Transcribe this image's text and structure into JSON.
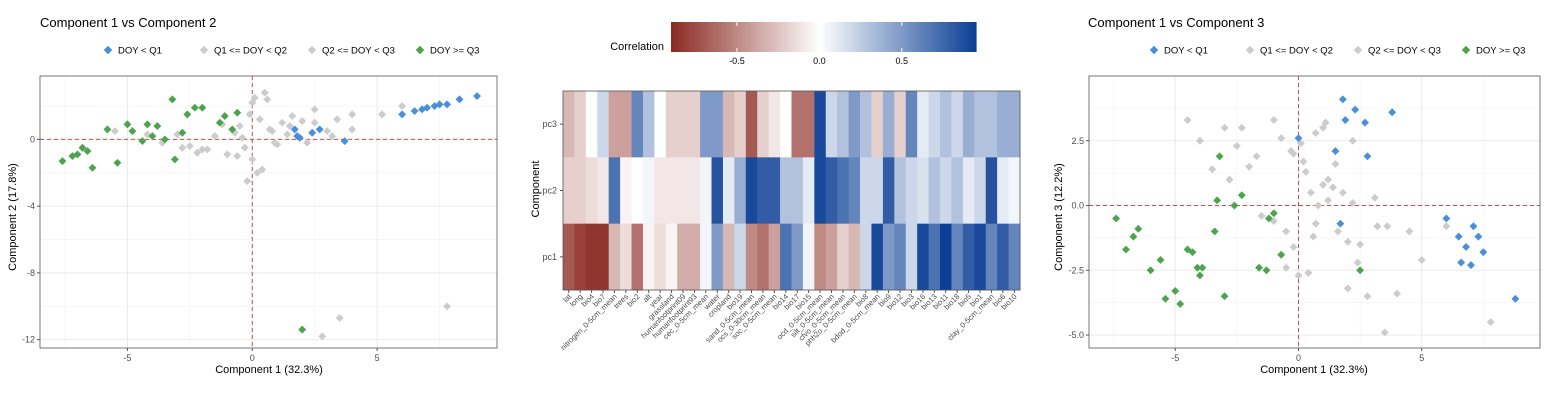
{
  "colors": {
    "q1": "#4a90d9",
    "q2": "#cccccc",
    "q3": "#cccccc",
    "q4": "#4ea44e",
    "refline": "#c0504d",
    "grid": "#ebebeb",
    "heat_neg": "#8b2a22",
    "heat_mid": "#ffffff",
    "heat_pos": "#0b3f95"
  },
  "chart_data": [
    {
      "type": "scatter",
      "title": "Component 1 vs Component 2",
      "xlabel": "Component 1 (32.3%)",
      "ylabel": "Component 2 (17.8%)",
      "xlim": [
        -8.5,
        9.8
      ],
      "ylim": [
        -12.5,
        3.8
      ],
      "xticks": [
        -5,
        0,
        5
      ],
      "yticks": [
        0,
        -4,
        -8,
        -12
      ],
      "legend": [
        "DOY < Q1",
        "Q1 <= DOY < Q2",
        "Q2 <= DOY < Q3",
        "DOY >= Q3"
      ],
      "series": [
        {
          "name": "DOY < Q1",
          "x": [
            1.7,
            1.8,
            1.9,
            2.4,
            2.7,
            3.7,
            6.0,
            6.5,
            6.8,
            7.0,
            7.3,
            7.5,
            7.8,
            8.3,
            9.0
          ],
          "y": [
            0.6,
            0.2,
            0.1,
            0.4,
            0.6,
            -0.1,
            1.5,
            1.7,
            1.8,
            1.9,
            2.0,
            2.1,
            2.1,
            2.4,
            2.6
          ]
        },
        {
          "name": "Q1 <= DOY < Q2",
          "x": [
            -3.0,
            -2.5,
            -2.2,
            -1.8,
            -1.5,
            -1.0,
            -0.7,
            -0.5,
            -0.3,
            -0.1,
            0.1,
            0.3,
            0.5,
            0.7,
            0.9,
            1.2,
            1.4,
            1.6,
            2.0,
            2.2,
            2.5,
            3.0,
            3.2,
            4.0,
            5.2,
            0.2,
            0.4,
            -0.2,
            0.0,
            2.8,
            3.5
          ],
          "y": [
            0.3,
            -0.4,
            -0.8,
            -0.6,
            0.2,
            -0.9,
            0.4,
            0.8,
            -0.5,
            1.5,
            2.5,
            1.2,
            2.8,
            0.6,
            -0.2,
            1.0,
            0.3,
            1.4,
            1.1,
            -0.2,
            1.8,
            0.5,
            0.2,
            1.5,
            1.5,
            -2.0,
            -1.8,
            -2.5,
            -1.2,
            -11.8,
            -10.7
          ]
        },
        {
          "name": "Q2 <= DOY < Q3",
          "x": [
            -5.5,
            -4.2,
            -3.6,
            -2.8,
            -2.0,
            -1.2,
            -0.6,
            -0.4,
            0.0,
            0.6,
            0.8,
            1.0,
            1.5,
            2.5,
            3.4,
            4.0,
            6.0,
            7.8
          ],
          "y": [
            0.5,
            0.3,
            -0.2,
            -0.5,
            -0.6,
            0.9,
            -1.0,
            0.1,
            2.2,
            2.4,
            0.5,
            -0.3,
            0.8,
            1.0,
            1.2,
            0.6,
            2.0,
            -10.0
          ]
        },
        {
          "name": "DOY >= Q3",
          "x": [
            -7.6,
            -7.2,
            -7.0,
            -6.8,
            -6.6,
            -6.4,
            -5.8,
            -5.4,
            -5.0,
            -4.8,
            -4.4,
            -4.2,
            -4.0,
            -3.8,
            -3.5,
            -3.2,
            -3.1,
            -2.8,
            -2.6,
            -2.3,
            -2.0,
            -1.3,
            -1.1,
            -0.8,
            -0.6,
            2.0
          ],
          "y": [
            -1.3,
            -1.0,
            -0.9,
            -0.5,
            -0.7,
            -1.7,
            0.6,
            -1.4,
            0.9,
            0.5,
            -0.1,
            0.9,
            0.2,
            0.8,
            0.0,
            2.4,
            -1.2,
            0.4,
            1.5,
            1.9,
            1.9,
            1.0,
            1.4,
            0.6,
            1.6,
            -11.4
          ]
        }
      ]
    },
    {
      "type": "heatmap",
      "title": "Correlation",
      "ylabel": "Component",
      "colorbar_ticks": [
        -0.5,
        0.0,
        0.5
      ],
      "colorbar_range": [
        -0.9,
        0.95
      ],
      "rows": [
        "pc3",
        "pc2",
        "pc1"
      ],
      "columns": [
        "lat",
        "long",
        "bio4",
        "bio7",
        "nitrogen_0-5cm_mean",
        "trees",
        "bio2",
        "alt",
        "year",
        "grassland",
        "humanfootprint09",
        "humanfootprint93",
        "cec_0-5cm_mean",
        "water",
        "cropland",
        "bio19",
        "sand_0-5cm_mean",
        "ocs_0-30cm_mean",
        "soc_0-5cm_mean",
        "bio14",
        "bio17",
        "bio15",
        "ocd_0-5cm_mean",
        "silt_0-5cm_mean",
        "cfvo_0-5cm_mean",
        "phh2o_0-5cm_mean",
        "bio8",
        "bdod_0-5cm_mean",
        "bio9",
        "bio12",
        "bio3",
        "bio16",
        "bio13",
        "bio11",
        "bio18",
        "bio5",
        "bio1",
        "clay_0-5cm_mean",
        "bio6",
        "bio10"
      ],
      "values": [
        [
          -0.3,
          -0.2,
          0.0,
          0.2,
          -0.4,
          -0.4,
          0.6,
          0.3,
          0.0,
          -0.2,
          -0.2,
          -0.2,
          0.5,
          0.5,
          -0.3,
          -0.2,
          -0.7,
          -0.2,
          -0.1,
          0.0,
          -0.6,
          -0.6,
          0.9,
          0.2,
          0.3,
          0.5,
          0.3,
          -0.2,
          0.4,
          -0.2,
          0.6,
          0.1,
          0.2,
          0.3,
          0.2,
          0.4,
          0.3,
          0.3,
          0.4,
          0.4
        ],
        [
          -0.2,
          -0.2,
          -0.15,
          -0.1,
          0.7,
          -0.05,
          0.0,
          0.05,
          -0.1,
          -0.1,
          -0.1,
          -0.1,
          0.05,
          0.85,
          0.1,
          0.4,
          0.9,
          0.8,
          0.8,
          0.3,
          0.3,
          0.1,
          0.9,
          0.8,
          0.7,
          0.6,
          0.2,
          0.2,
          0.8,
          0.3,
          0.2,
          0.15,
          0.3,
          0.2,
          0.3,
          0.1,
          0.2,
          0.85,
          0.1,
          0.05
        ],
        [
          -0.7,
          -0.8,
          -0.85,
          -0.85,
          -0.3,
          -0.15,
          -0.6,
          -0.05,
          -0.15,
          -0.05,
          -0.35,
          -0.35,
          0.05,
          0.5,
          -0.3,
          0.2,
          -0.5,
          -0.6,
          -0.4,
          0.7,
          0.5,
          0.05,
          -0.5,
          -0.4,
          -0.2,
          -0.3,
          0.2,
          0.9,
          0.5,
          0.6,
          0.2,
          0.9,
          0.7,
          0.95,
          0.6,
          0.8,
          0.9,
          0.6,
          0.8,
          0.6
        ]
      ]
    },
    {
      "type": "scatter",
      "title": "Component 1 vs Component 3",
      "xlabel": "Component 1 (32.3%)",
      "ylabel": "Component 3 (12.2%)",
      "xlim": [
        -8.5,
        9.8
      ],
      "ylim": [
        -5.5,
        5.0
      ],
      "xticks": [
        -5,
        0,
        5
      ],
      "yticks": [
        2.5,
        0.0,
        -2.5,
        -5.0
      ],
      "legend": [
        "DOY < Q1",
        "Q1 <= DOY < Q2",
        "Q2 <= DOY < Q3",
        "DOY >= Q3"
      ],
      "series": [
        {
          "name": "DOY < Q1",
          "x": [
            0.0,
            1.5,
            1.7,
            1.8,
            1.9,
            2.3,
            2.7,
            2.8,
            3.8,
            6.0,
            6.5,
            6.6,
            6.8,
            7.0,
            7.1,
            7.3,
            7.5,
            8.8
          ],
          "y": [
            2.6,
            2.1,
            -0.7,
            4.1,
            3.3,
            3.7,
            3.2,
            1.9,
            3.6,
            -0.5,
            -1.2,
            -2.2,
            -1.6,
            -2.3,
            -0.8,
            -1.2,
            -1.8,
            -3.6
          ]
        },
        {
          "name": "Q1 <= DOY < Q2",
          "x": [
            -4.5,
            -3.0,
            -2.5,
            -2.0,
            -1.5,
            -1.0,
            -0.5,
            -0.3,
            0.1,
            0.3,
            0.5,
            0.7,
            1.0,
            1.2,
            1.4,
            1.6,
            2.0,
            2.2,
            2.4,
            2.8,
            3.2,
            0.4,
            0.8,
            -0.2,
            3.5,
            4.0,
            0.6,
            1.2
          ],
          "y": [
            3.3,
            3.0,
            2.3,
            1.5,
            -0.4,
            -0.6,
            -1.0,
            2.1,
            2.4,
            1.3,
            0.5,
            2.8,
            3.0,
            1.0,
            0.7,
            -1.0,
            -1.4,
            0.1,
            -2.2,
            -3.5,
            -0.8,
            -2.6,
            0.0,
            -1.6,
            -4.9,
            -3.4,
            -1.2,
            0.2
          ]
        },
        {
          "name": "Q2 <= DOY < Q3",
          "x": [
            -4.0,
            -3.5,
            -2.8,
            -2.3,
            -1.7,
            -0.7,
            -0.5,
            -0.2,
            0.2,
            0.7,
            1.1,
            1.5,
            1.8,
            2.2,
            2.5,
            3.1,
            3.6,
            4.5,
            5.0,
            6.0,
            7.8,
            -1.0,
            0.0,
            1.0,
            2.0
          ],
          "y": [
            2.5,
            1.4,
            1.0,
            3.0,
            1.9,
            2.6,
            -2.4,
            2.0,
            1.7,
            -0.7,
            3.2,
            1.6,
            0.5,
            2.5,
            -1.5,
            0.3,
            -0.8,
            -1.0,
            -2.1,
            -0.8,
            -4.5,
            3.3,
            -2.7,
            0.8,
            -3.2
          ]
        },
        {
          "name": "DOY >= Q3",
          "x": [
            -7.4,
            -7.0,
            -6.7,
            -6.5,
            -6.0,
            -5.6,
            -5.4,
            -5.0,
            -4.8,
            -4.5,
            -4.3,
            -4.1,
            -4.0,
            -3.9,
            -3.4,
            -3.3,
            -3.2,
            -3.0,
            -2.6,
            -2.3,
            -1.6,
            -1.3,
            -1.2,
            -1.0,
            -0.7,
            2.5
          ],
          "y": [
            -0.5,
            -1.7,
            -1.2,
            -0.9,
            -2.5,
            -2.1,
            -3.6,
            -3.3,
            -3.8,
            -1.7,
            -1.8,
            -2.4,
            -2.7,
            -2.4,
            -1.0,
            0.2,
            1.9,
            -3.5,
            0.0,
            0.4,
            -2.4,
            -2.5,
            -0.5,
            -0.3,
            -1.9,
            -2.5
          ]
        }
      ]
    }
  ]
}
